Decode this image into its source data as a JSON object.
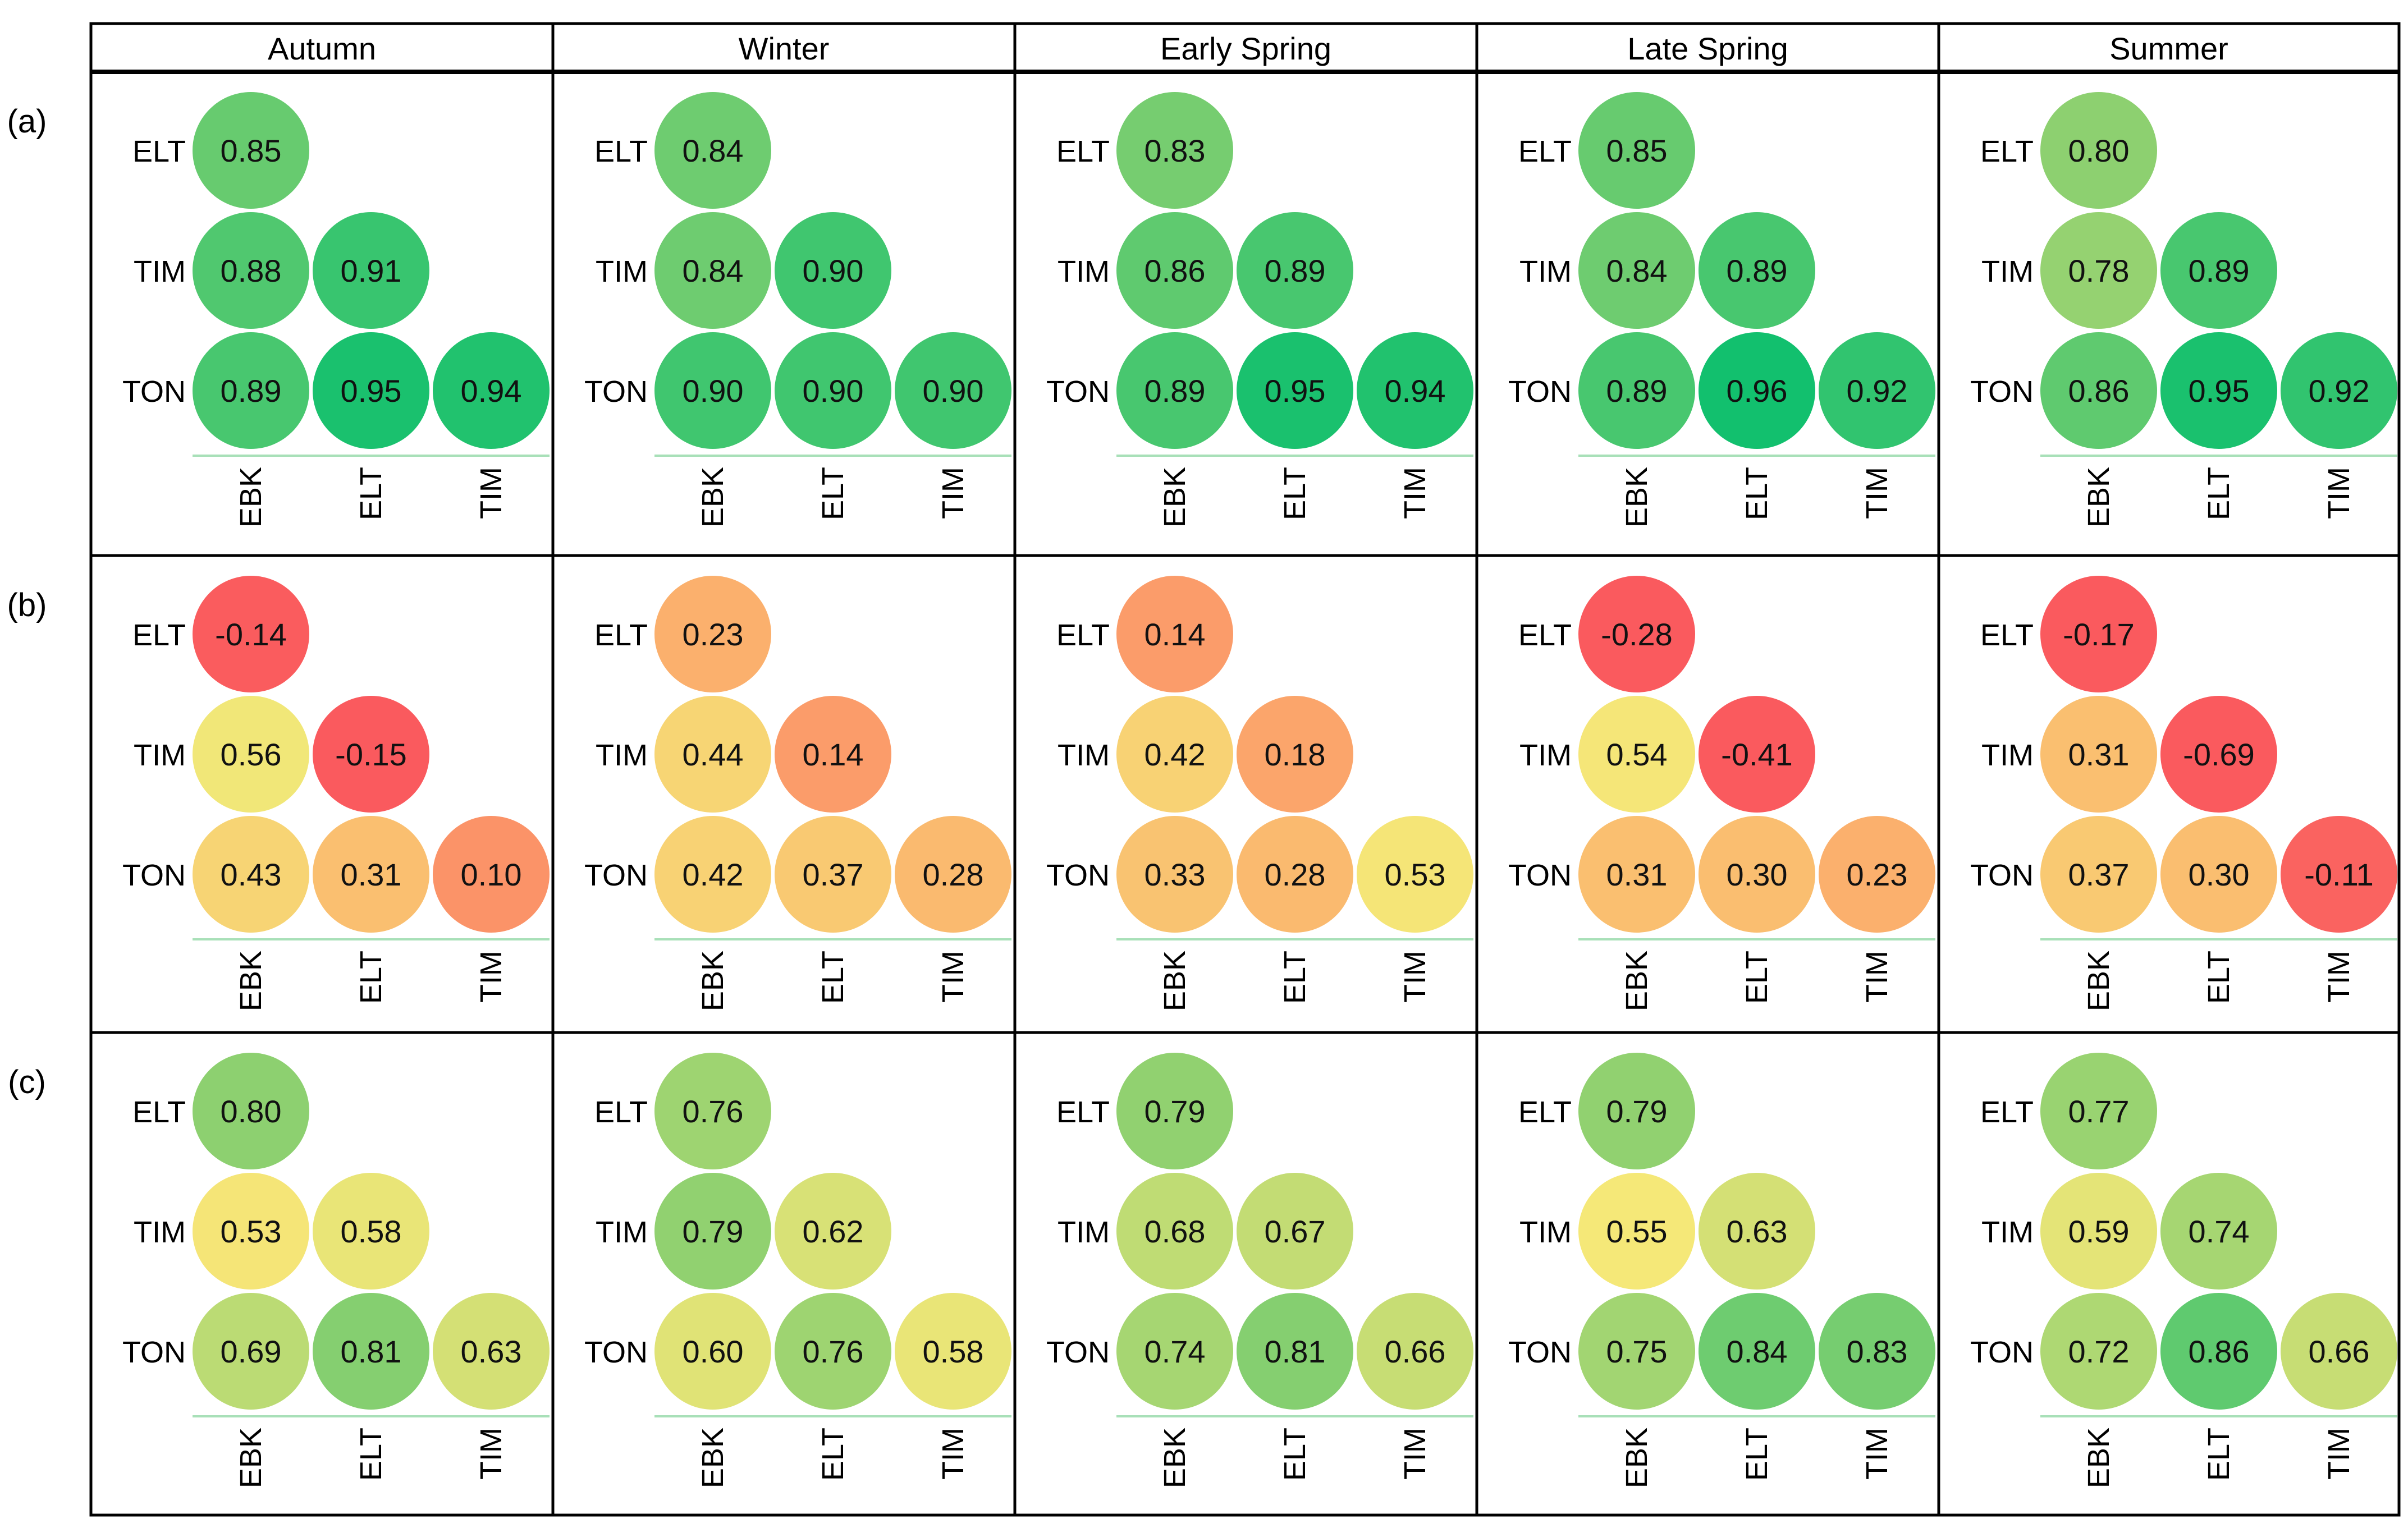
{
  "chart_data": {
    "type": "correlation-matrix-grid",
    "columns": [
      "Autumn",
      "Winter",
      "Early Spring",
      "Late Spring",
      "Summer"
    ],
    "rows": [
      "(a)",
      "(b)",
      "(c)"
    ],
    "row_axis_labels": [
      "ELT",
      "TIM",
      "TON"
    ],
    "col_axis_labels": [
      "EBK",
      "ELT",
      "TIM"
    ],
    "value_range": [
      -0.7,
      0.96
    ],
    "colors": {
      "high": "#12c06e",
      "mid_high": "#8dd070",
      "mid": "#f5e878",
      "low_mid": "#fbb56e",
      "low": "#fa5a5e",
      "axis_line": "#a8e0b8",
      "border": "#000000"
    },
    "panels": [
      [
        {
          "season": "Autumn",
          "values": [
            [
              "0.85"
            ],
            [
              "0.88",
              "0.91"
            ],
            [
              "0.89",
              "0.95",
              "0.94"
            ]
          ]
        },
        {
          "season": "Winter",
          "values": [
            [
              "0.84"
            ],
            [
              "0.84",
              "0.90"
            ],
            [
              "0.90",
              "0.90",
              "0.90"
            ]
          ]
        },
        {
          "season": "Early Spring",
          "values": [
            [
              "0.83"
            ],
            [
              "0.86",
              "0.89"
            ],
            [
              "0.89",
              "0.95",
              "0.94"
            ]
          ]
        },
        {
          "season": "Late Spring",
          "values": [
            [
              "0.85"
            ],
            [
              "0.84",
              "0.89"
            ],
            [
              "0.89",
              "0.96",
              "0.92"
            ]
          ]
        },
        {
          "season": "Summer",
          "values": [
            [
              "0.80"
            ],
            [
              "0.78",
              "0.89"
            ],
            [
              "0.86",
              "0.95",
              "0.92"
            ]
          ]
        }
      ],
      [
        {
          "season": "Autumn",
          "values": [
            [
              "-0.14"
            ],
            [
              "0.56",
              "-0.15"
            ],
            [
              "0.43",
              "0.31",
              "0.10"
            ]
          ]
        },
        {
          "season": "Winter",
          "values": [
            [
              "0.23"
            ],
            [
              "0.44",
              "0.14"
            ],
            [
              "0.42",
              "0.37",
              "0.28"
            ]
          ]
        },
        {
          "season": "Early Spring",
          "values": [
            [
              "0.14"
            ],
            [
              "0.42",
              "0.18"
            ],
            [
              "0.33",
              "0.28",
              "0.53"
            ]
          ]
        },
        {
          "season": "Late Spring",
          "values": [
            [
              "-0.28"
            ],
            [
              "0.54",
              "-0.41"
            ],
            [
              "0.31",
              "0.30",
              "0.23"
            ]
          ]
        },
        {
          "season": "Summer",
          "values": [
            [
              "-0.17"
            ],
            [
              "0.31",
              "-0.69"
            ],
            [
              "0.37",
              "0.30",
              "-0.11"
            ]
          ]
        }
      ],
      [
        {
          "season": "Autumn",
          "values": [
            [
              "0.80"
            ],
            [
              "0.53",
              "0.58"
            ],
            [
              "0.69",
              "0.81",
              "0.63"
            ]
          ]
        },
        {
          "season": "Winter",
          "values": [
            [
              "0.76"
            ],
            [
              "0.79",
              "0.62"
            ],
            [
              "0.60",
              "0.76",
              "0.58"
            ]
          ]
        },
        {
          "season": "Early Spring",
          "values": [
            [
              "0.79"
            ],
            [
              "0.68",
              "0.67"
            ],
            [
              "0.74",
              "0.81",
              "0.66"
            ]
          ]
        },
        {
          "season": "Late Spring",
          "values": [
            [
              "0.79"
            ],
            [
              "0.55",
              "0.63"
            ],
            [
              "0.75",
              "0.84",
              "0.83"
            ]
          ]
        },
        {
          "season": "Summer",
          "values": [
            [
              "0.77"
            ],
            [
              "0.59",
              "0.74"
            ],
            [
              "0.72",
              "0.86",
              "0.66"
            ]
          ]
        }
      ]
    ]
  }
}
